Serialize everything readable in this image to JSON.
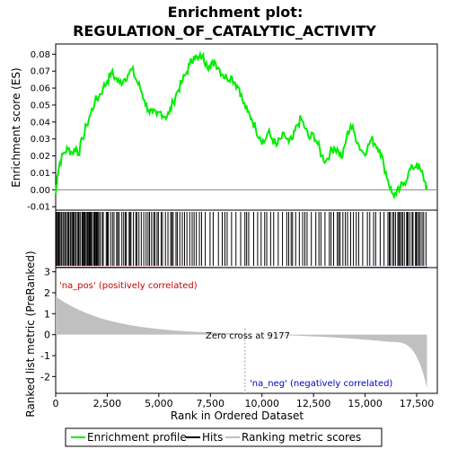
{
  "chart_data": {
    "type": "line",
    "title_line1": "Enrichment plot:",
    "title_line2": "REGULATION_OF_CATALYTIC_ACTIVITY",
    "xlabel": "Rank in Ordered Dataset",
    "ylabel_top": "Enrichment score (ES)",
    "ylabel_bottom": "Ranked list metric (PreRanked)",
    "xlim": [
      0,
      18500
    ],
    "ylim_es": [
      -0.012,
      0.086
    ],
    "ylim_metric": [
      -2.8,
      3.2
    ],
    "x_ticks": [
      0,
      2500,
      5000,
      7500,
      10000,
      12500,
      15000,
      17500
    ],
    "x_tick_labels": [
      "0",
      "2,500",
      "5,000",
      "7,500",
      "10,000",
      "12,500",
      "15,000",
      "17,500"
    ],
    "es_ticks": [
      -0.01,
      0.0,
      0.01,
      0.02,
      0.03,
      0.04,
      0.05,
      0.06,
      0.07,
      0.08
    ],
    "es_tick_labels": [
      "-0.01",
      "0.00",
      "0.01",
      "0.02",
      "0.03",
      "0.04",
      "0.05",
      "0.06",
      "0.07",
      "0.08"
    ],
    "metric_ticks": [
      -2,
      -1,
      0,
      1,
      2,
      3
    ],
    "metric_tick_labels": [
      "-2",
      "-1",
      "0",
      "1",
      "2",
      "3"
    ],
    "es_curve": [
      [
        0,
        -0.003
      ],
      [
        80,
        0.008
      ],
      [
        200,
        0.016
      ],
      [
        400,
        0.022
      ],
      [
        600,
        0.024
      ],
      [
        800,
        0.022
      ],
      [
        1000,
        0.025
      ],
      [
        1100,
        0.021
      ],
      [
        1300,
        0.03
      ],
      [
        1500,
        0.038
      ],
      [
        1700,
        0.045
      ],
      [
        1900,
        0.052
      ],
      [
        2100,
        0.055
      ],
      [
        2300,
        0.06
      ],
      [
        2500,
        0.064
      ],
      [
        2700,
        0.069
      ],
      [
        2900,
        0.066
      ],
      [
        3100,
        0.063
      ],
      [
        3300,
        0.065
      ],
      [
        3500,
        0.068
      ],
      [
        3700,
        0.071
      ],
      [
        3900,
        0.065
      ],
      [
        4100,
        0.06
      ],
      [
        4300,
        0.053
      ],
      [
        4500,
        0.047
      ],
      [
        4700,
        0.045
      ],
      [
        4900,
        0.044
      ],
      [
        5100,
        0.046
      ],
      [
        5300,
        0.043
      ],
      [
        5500,
        0.045
      ],
      [
        5700,
        0.052
      ],
      [
        5900,
        0.058
      ],
      [
        6100,
        0.063
      ],
      [
        6300,
        0.068
      ],
      [
        6500,
        0.074
      ],
      [
        6700,
        0.079
      ],
      [
        6900,
        0.077
      ],
      [
        7100,
        0.079
      ],
      [
        7300,
        0.075
      ],
      [
        7500,
        0.072
      ],
      [
        7700,
        0.076
      ],
      [
        7900,
        0.072
      ],
      [
        8100,
        0.068
      ],
      [
        8300,
        0.066
      ],
      [
        8500,
        0.067
      ],
      [
        8700,
        0.063
      ],
      [
        8900,
        0.06
      ],
      [
        9100,
        0.051
      ],
      [
        9300,
        0.046
      ],
      [
        9500,
        0.042
      ],
      [
        9700,
        0.036
      ],
      [
        9900,
        0.031
      ],
      [
        10100,
        0.028
      ],
      [
        10300,
        0.034
      ],
      [
        10500,
        0.03
      ],
      [
        10700,
        0.026
      ],
      [
        10900,
        0.03
      ],
      [
        11100,
        0.032
      ],
      [
        11300,
        0.028
      ],
      [
        11500,
        0.03
      ],
      [
        11700,
        0.038
      ],
      [
        11900,
        0.042
      ],
      [
        12100,
        0.036
      ],
      [
        12300,
        0.03
      ],
      [
        12500,
        0.033
      ],
      [
        12700,
        0.027
      ],
      [
        12900,
        0.02
      ],
      [
        13100,
        0.017
      ],
      [
        13300,
        0.022
      ],
      [
        13500,
        0.025
      ],
      [
        13700,
        0.023
      ],
      [
        13900,
        0.019
      ],
      [
        14100,
        0.031
      ],
      [
        14300,
        0.038
      ],
      [
        14500,
        0.033
      ],
      [
        14700,
        0.026
      ],
      [
        14900,
        0.022
      ],
      [
        15100,
        0.024
      ],
      [
        15300,
        0.03
      ],
      [
        15500,
        0.027
      ],
      [
        15700,
        0.024
      ],
      [
        15900,
        0.015
      ],
      [
        16100,
        0.006
      ],
      [
        16300,
        -0.002
      ],
      [
        16500,
        -0.003
      ],
      [
        16700,
        0.001
      ],
      [
        16900,
        0.004
      ],
      [
        17100,
        0.01
      ],
      [
        17300,
        0.013
      ],
      [
        17500,
        0.015
      ],
      [
        17700,
        0.011
      ],
      [
        17900,
        0.005
      ],
      [
        18000,
        0.0
      ]
    ],
    "zero_cross_rank": 9177,
    "annotations": {
      "na_pos": "'na_pos' (positively correlated)",
      "na_neg": "'na_neg' (negatively correlated)",
      "zero_cross": "Zero cross at 9177"
    },
    "legend": {
      "items": [
        "Enrichment profile",
        "Hits",
        "Ranking metric scores"
      ],
      "colors": [
        "#00ee00",
        "#000000",
        "#c0c0c0"
      ]
    },
    "colors": {
      "es_line": "#00ee00",
      "metric_fill": "#c0c0c0",
      "pos_color": "#dd0000",
      "neg_color": "#0000cc",
      "zero_cross_line": "#999999",
      "na_pos_text": "#cc0000",
      "na_neg_text": "#0000cc"
    },
    "grid": false
  }
}
